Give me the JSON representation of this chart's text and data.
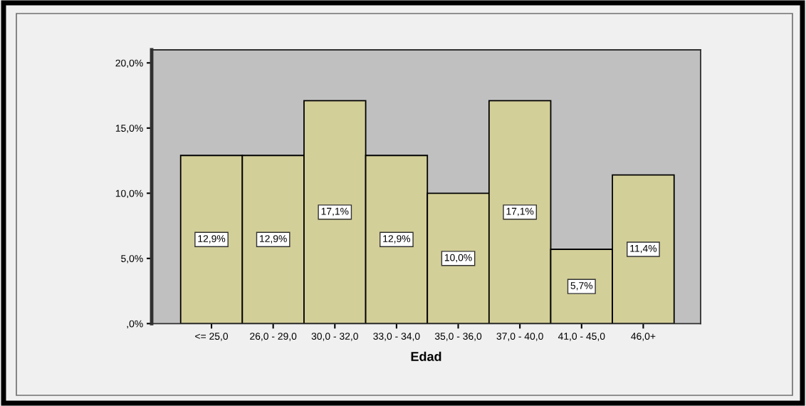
{
  "chart_data": {
    "type": "bar",
    "xlabel": "Edad",
    "categories": [
      "<= 25,0",
      "26,0 - 29,0",
      "30,0 - 32,0",
      "33,0 - 34,0",
      "35,0 - 36,0",
      "37,0 - 40,0",
      "41,0 - 45,0",
      "46,0+"
    ],
    "values": [
      12.9,
      12.9,
      17.1,
      12.9,
      10.0,
      17.1,
      5.7,
      11.4
    ],
    "color": "#d3cf98",
    "value_labels": [
      "12,9%",
      "12,9%",
      "17,1%",
      "12,9%",
      "10,0%",
      "17,1%",
      "5,7%",
      "11,4%"
    ],
    "ylim": [
      0,
      21
    ],
    "yticks": [
      {
        "value": 0,
        "label": ",0%"
      },
      {
        "value": 5,
        "label": "5,0%"
      },
      {
        "value": 10,
        "label": "10,0%"
      },
      {
        "value": 15,
        "label": "15,0%"
      },
      {
        "value": 20,
        "label": "20,0%"
      }
    ]
  }
}
